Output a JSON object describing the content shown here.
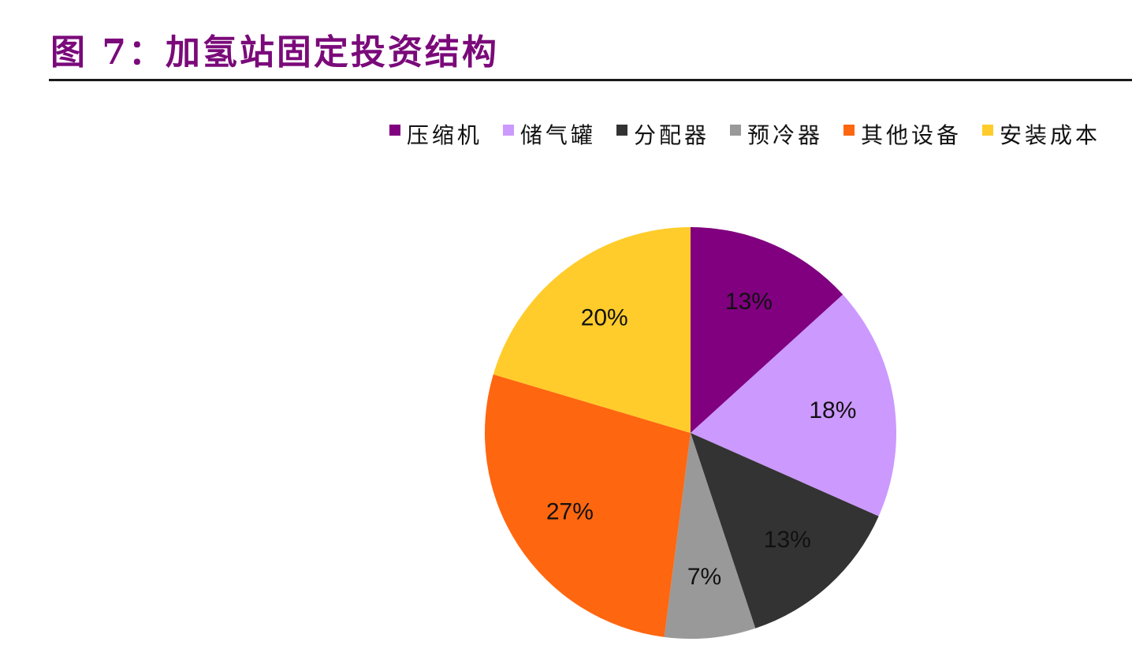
{
  "title": "图 7：加氢站固定投资结构",
  "chart_data": {
    "type": "pie",
    "title": "",
    "legend_position": "top-right",
    "categories": [
      "压缩机",
      "储气罐",
      "分配器",
      "预冷器",
      "其他设备",
      "安装成本"
    ],
    "values": [
      13,
      18,
      13,
      7,
      27,
      20
    ],
    "labels": [
      "13%",
      "18%",
      "13%",
      "7%",
      "27%",
      "20%"
    ],
    "colors": [
      "#800080",
      "#cc99ff",
      "#333333",
      "#999999",
      "#ff6610",
      "#ffcc2b"
    ]
  }
}
